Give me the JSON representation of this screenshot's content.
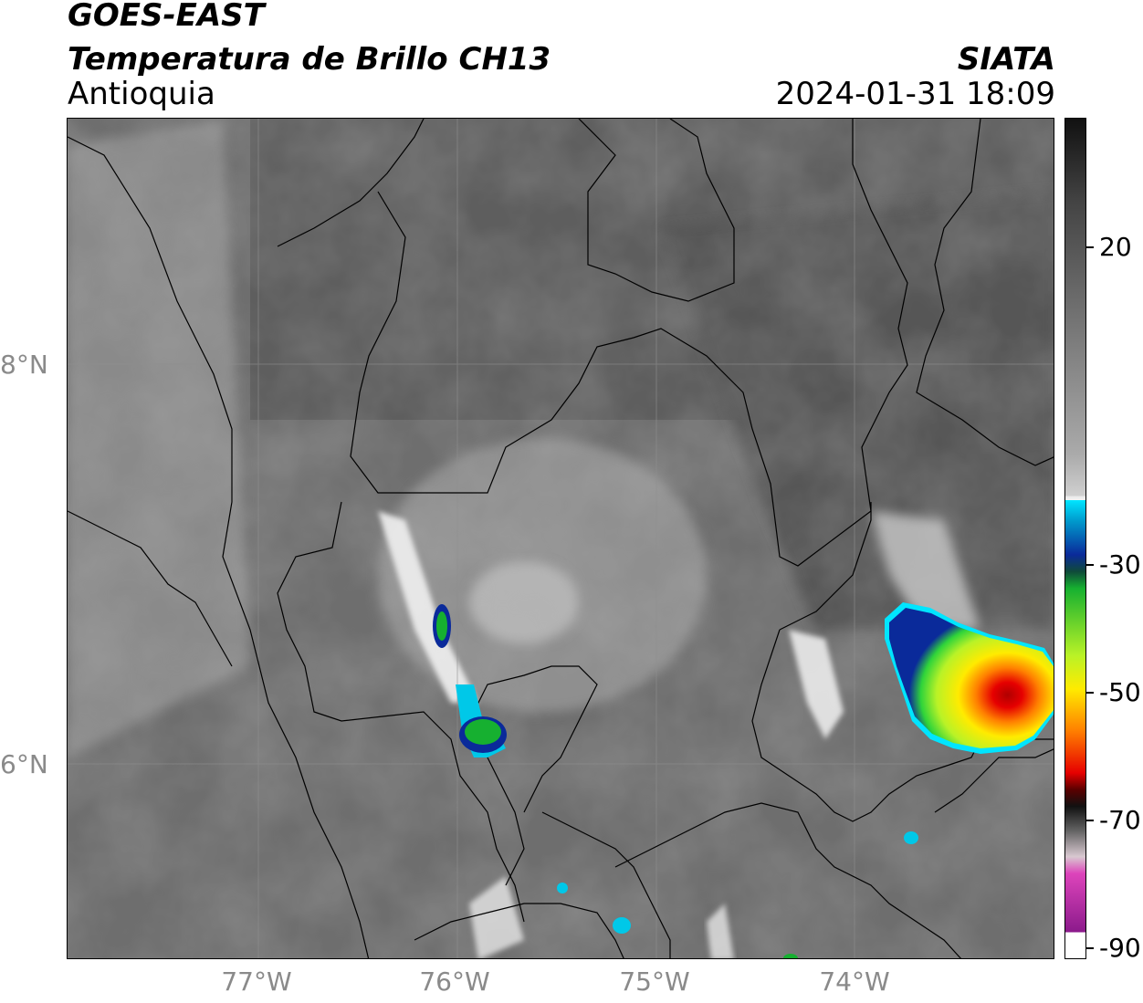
{
  "header": {
    "satellite": "GOES-EAST",
    "product": "Temperatura de Brillo CH13",
    "region": "Antioquia",
    "brand": "SIATA",
    "timestamp": "2024-01-31 18:09"
  },
  "map": {
    "lon_labels": [
      "77°W",
      "76°W",
      "75°W",
      "74°W"
    ],
    "lat_labels": [
      "8°N",
      "6°N"
    ],
    "lon_range": [
      -77.95,
      -73.05
    ],
    "lat_range": [
      4.95,
      9.2
    ]
  },
  "colorbar": {
    "ticks": [
      "20",
      "-30",
      "-50",
      "-70",
      "-90"
    ],
    "range": [
      -90,
      40
    ],
    "colors": {
      "warm_black": "#111111",
      "gray": "#888888",
      "white": "#f5f5f5",
      "cyan": "#00e5ff",
      "blue": "#0a2a9a",
      "green": "#16b030",
      "lime": "#b9f227",
      "yellow": "#ffeb00",
      "orange": "#ff7f00",
      "red": "#e60000",
      "dark_red": "#5a0000",
      "magenta": "#dd44bb",
      "purple": "#8b1a8b"
    }
  }
}
